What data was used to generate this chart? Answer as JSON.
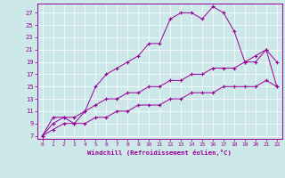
{
  "xlabel": "Windchill (Refroidissement éolien,°C)",
  "bg_color": "#cce8e8",
  "line_color": "#990099",
  "xlim": [
    -0.5,
    22.5
  ],
  "ylim": [
    6.5,
    28.5
  ],
  "yticks": [
    7,
    9,
    11,
    13,
    15,
    17,
    19,
    21,
    23,
    25,
    27
  ],
  "xticks": [
    0,
    1,
    2,
    3,
    4,
    5,
    6,
    7,
    8,
    9,
    10,
    11,
    12,
    13,
    14,
    15,
    16,
    17,
    18,
    19,
    20,
    21,
    22
  ],
  "curve1_x": [
    0,
    1,
    2,
    3,
    4,
    5,
    6,
    7,
    8,
    9,
    10,
    11,
    12,
    13,
    14,
    15,
    16,
    17,
    18,
    19,
    20,
    21,
    22
  ],
  "curve1_y": [
    7,
    8,
    9,
    9,
    9,
    10,
    10,
    11,
    11,
    12,
    12,
    12,
    13,
    13,
    14,
    14,
    14,
    15,
    15,
    15,
    15,
    16,
    15
  ],
  "curve2_x": [
    0,
    1,
    2,
    3,
    4,
    5,
    6,
    7,
    8,
    9,
    10,
    11,
    12,
    13,
    14,
    15,
    16,
    17,
    18,
    19,
    20,
    21,
    22
  ],
  "curve2_y": [
    7,
    9,
    10,
    10,
    11,
    12,
    13,
    13,
    14,
    14,
    15,
    15,
    16,
    16,
    17,
    17,
    18,
    18,
    18,
    19,
    20,
    21,
    15
  ],
  "curve3_x": [
    0,
    1,
    2,
    3,
    4,
    5,
    6,
    7,
    8,
    9,
    10,
    11,
    12,
    13,
    14,
    15,
    16,
    17,
    18,
    19,
    20,
    21,
    22
  ],
  "curve3_y": [
    7,
    10,
    10,
    9,
    11,
    15,
    17,
    18,
    19,
    20,
    22,
    22,
    26,
    27,
    27,
    26,
    28,
    27,
    24,
    19,
    19,
    21,
    19
  ]
}
